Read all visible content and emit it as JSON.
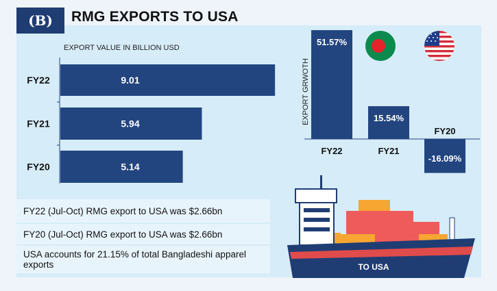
{
  "header": {
    "logo_text": "(B)",
    "title": "RMG EXPORTS TO USA"
  },
  "colors": {
    "bar": "#22457f",
    "panel": "#d6ecf8",
    "note_bg": "#e8f4fc",
    "ship_hull": "#1f3d73",
    "ship_red": "#e04b4b",
    "container_orange": "#f7a632",
    "container_red": "#ef5b5b"
  },
  "chart_data": [
    {
      "type": "bar",
      "orientation": "horizontal",
      "title": "",
      "xlabel": "EXPORT VALUE  IN BILLION USD",
      "ylabel": "",
      "categories": [
        "FY22",
        "FY21",
        "FY20"
      ],
      "values": [
        9.01,
        5.94,
        5.14
      ],
      "value_labels": [
        "9.01",
        "5.94",
        "5.14"
      ],
      "xlim": [
        0,
        9.35
      ],
      "grid": false
    },
    {
      "type": "bar",
      "orientation": "vertical",
      "title": "",
      "xlabel": "",
      "ylabel": "EXPORT GRWOTH",
      "categories": [
        "FY22",
        "FY21",
        "FY20"
      ],
      "values": [
        51.57,
        15.54,
        -16.09
      ],
      "value_labels": [
        "51.57%",
        "15.54%",
        "-16.09%"
      ],
      "ylim": [
        -16.09,
        51.57
      ],
      "grid": false
    }
  ],
  "notes": [
    "FY22 (Jul-Oct) RMG export to USA was $2.66bn",
    "FY20 (Jul-Oct) RMG export to USA was $2.66bn",
    "USA accounts for 21.15% of total Bangladeshi apparel exports"
  ],
  "illustration": {
    "ship_label": "TO USA",
    "flags": [
      "bangladesh-flag-icon",
      "usa-flag-icon"
    ]
  }
}
